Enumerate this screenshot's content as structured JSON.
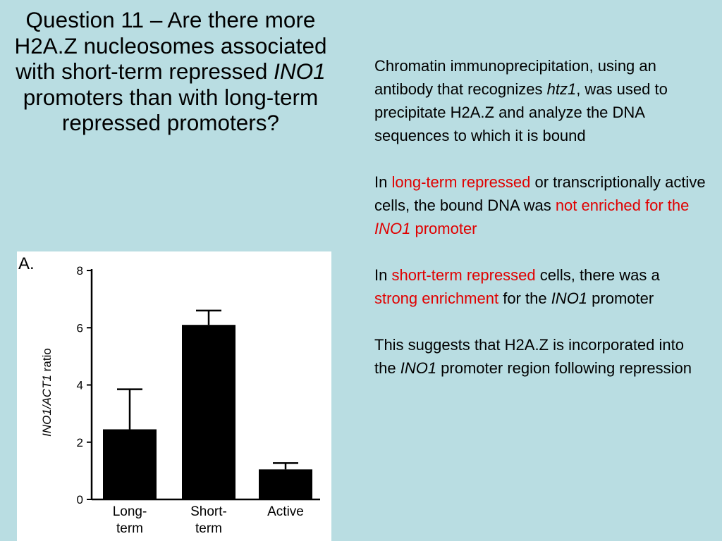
{
  "title": {
    "part1": "Question 11 – Are there more H2A.Z nucleosomes associated with short-term repressed ",
    "gene": "INO1",
    "part2": " promoters than with long-term repressed promoters?"
  },
  "paragraphs": {
    "p1": {
      "a": "Chromatin immunoprecipitation, using an antibody that recognizes ",
      "b": "htz1",
      "c": ", was used to precipitate H2A.Z and analyze the DNA sequences to which it is bound"
    },
    "p2": {
      "a": "In ",
      "b": "long-term repressed",
      "c": " or transcriptionally active cells, the bound DNA was ",
      "d": "not enriched for the ",
      "e": "INO1",
      "f": " promoter"
    },
    "p3": {
      "a": "In ",
      "b": "short-term repressed",
      "c": " cells, there was a ",
      "d": "strong enrichment",
      "e": " for the ",
      "f": "INO1",
      "g": " promoter"
    },
    "p4": {
      "a": "This suggests that H2A.Z is incorporated into the ",
      "b": "INO1",
      "c": " promoter region following repression"
    }
  },
  "colors": {
    "background": "#b9dde2",
    "highlight": "#e00000",
    "bar": "#000000"
  },
  "chart_data": {
    "type": "bar",
    "panel_label": "A.",
    "ylabel_italic": "INO1/ACT1",
    "ylabel_rest": " ratio",
    "ylim": [
      0,
      8
    ],
    "yticks": [
      0,
      2,
      4,
      6,
      8
    ],
    "categories": [
      [
        "Long-",
        "term"
      ],
      [
        "Short-",
        "term"
      ],
      [
        "Active"
      ]
    ],
    "values": [
      2.45,
      6.1,
      1.05
    ],
    "errors": [
      1.4,
      0.5,
      0.22
    ]
  }
}
